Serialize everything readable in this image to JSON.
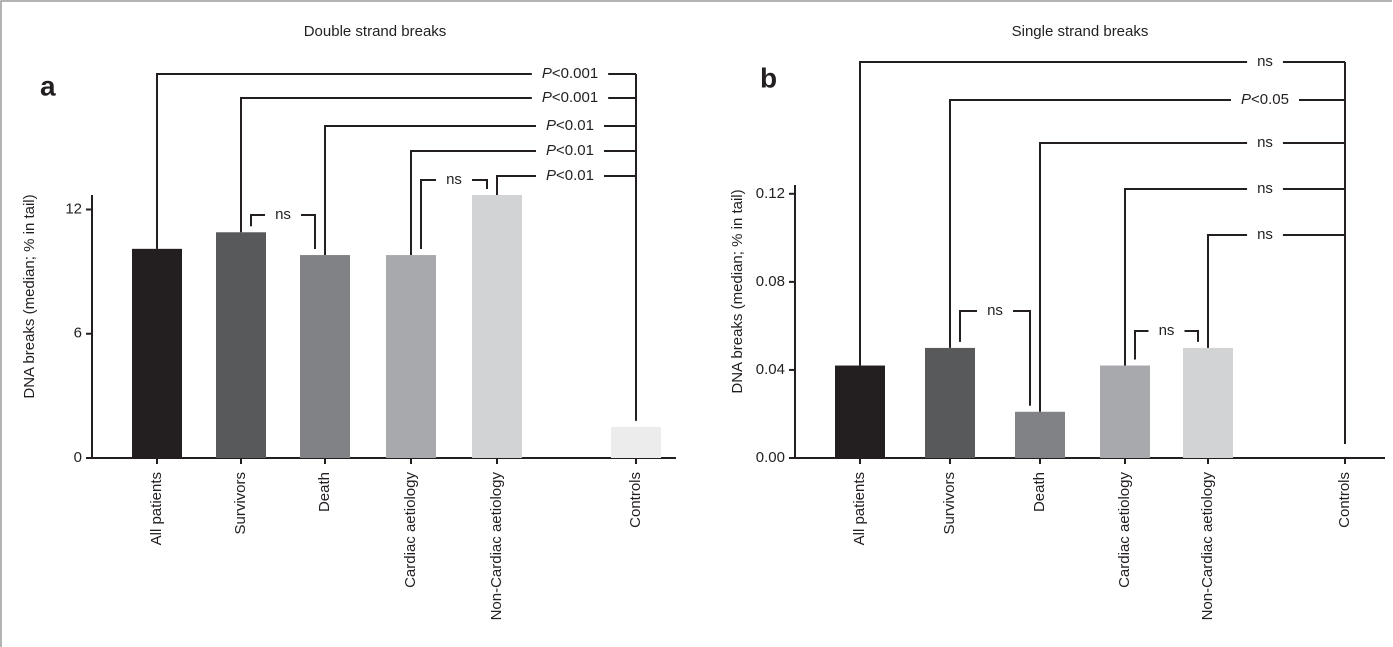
{
  "chart_data": [
    {
      "type": "bar",
      "panel": "a",
      "title": "Double strand breaks",
      "y_label": "DNA breaks (median; % in tail)",
      "categories": [
        "All patients",
        "Survivors",
        "Death",
        "Cardiac aetiology",
        "Non-Cardiac aetiology",
        "Controls"
      ],
      "values": [
        10.1,
        10.9,
        9.8,
        9.8,
        12.7,
        1.5
      ],
      "colors": [
        "#231f20",
        "#58595b",
        "#808285",
        "#a7a9ac",
        "#d1d3d4",
        "#ececec"
      ],
      "ylim": [
        0,
        12.7
      ],
      "yticks": [
        0,
        6,
        12
      ],
      "annotations": [
        "P<0.001",
        "P<0.001",
        "P<0.01",
        "P<0.01",
        "P<0.01",
        "ns",
        "ns"
      ]
    },
    {
      "type": "bar",
      "panel": "b",
      "title": "Single strand breaks",
      "y_label": "DNA breaks (median; % in tail)",
      "categories": [
        "All patients",
        "Survivors",
        "Death",
        "Cardiac aetiology",
        "Non-Cardiac aetiology",
        "Controls"
      ],
      "values": [
        0.042,
        0.05,
        0.021,
        0.042,
        0.05,
        0
      ],
      "colors": [
        "#231f20",
        "#58595b",
        "#808285",
        "#a7a9ac",
        "#d1d3d4",
        "#ececec"
      ],
      "ylim": [
        0,
        0.124
      ],
      "yticks": [
        {
          "value": 0,
          "label": "0.00"
        },
        {
          "value": 0.04,
          "label": "0.04"
        },
        {
          "value": 0.08,
          "label": "0.08"
        },
        {
          "value": 0.12,
          "label": "0.12"
        }
      ],
      "annotations": [
        "ns",
        "P<0.05",
        "ns",
        "ns",
        "ns",
        "ns",
        "ns"
      ]
    }
  ]
}
